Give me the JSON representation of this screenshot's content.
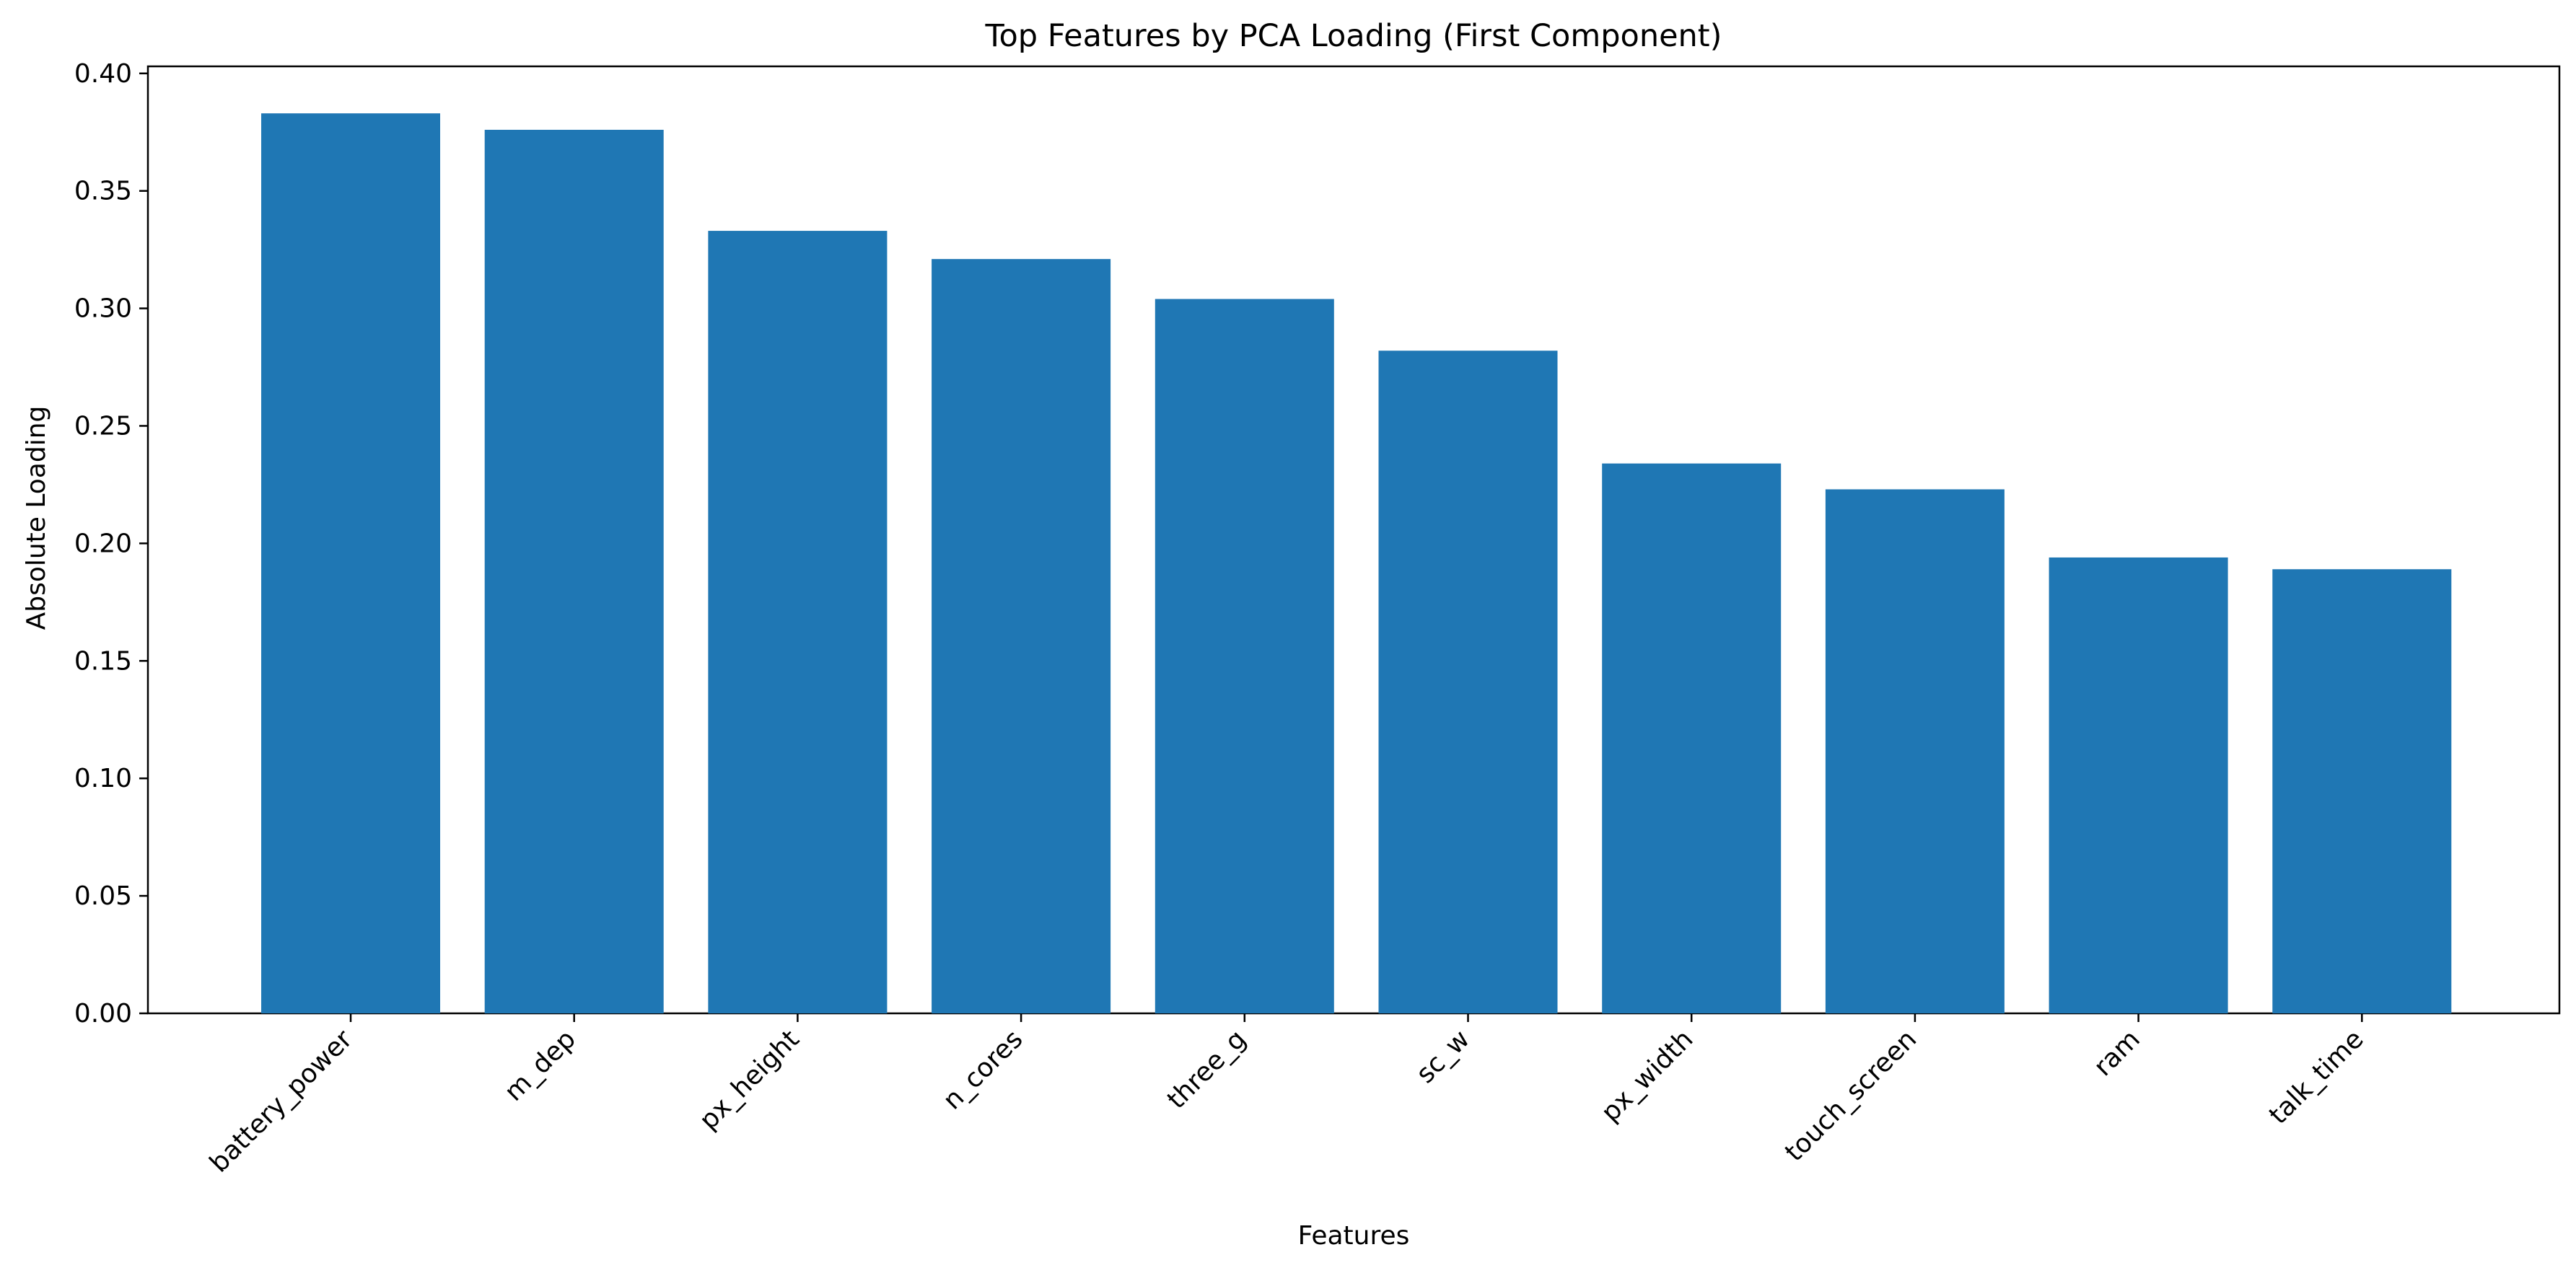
{
  "chart_data": {
    "type": "bar",
    "title": "Top Features by PCA Loading (First Component)",
    "xlabel": "Features",
    "ylabel": "Absolute Loading",
    "categories": [
      "battery_power",
      "m_dep",
      "px_height",
      "n_cores",
      "three_g",
      "sc_w",
      "px_width",
      "touch_screen",
      "ram",
      "talk_time"
    ],
    "values": [
      0.383,
      0.376,
      0.333,
      0.321,
      0.304,
      0.282,
      0.234,
      0.223,
      0.194,
      0.189
    ],
    "ylim": [
      0,
      0.403
    ],
    "yticks": [
      "0.00",
      "0.05",
      "0.10",
      "0.15",
      "0.20",
      "0.25",
      "0.30",
      "0.35",
      "0.40"
    ],
    "bar_color": "#1f77b4",
    "grid": false,
    "legend": "none"
  }
}
